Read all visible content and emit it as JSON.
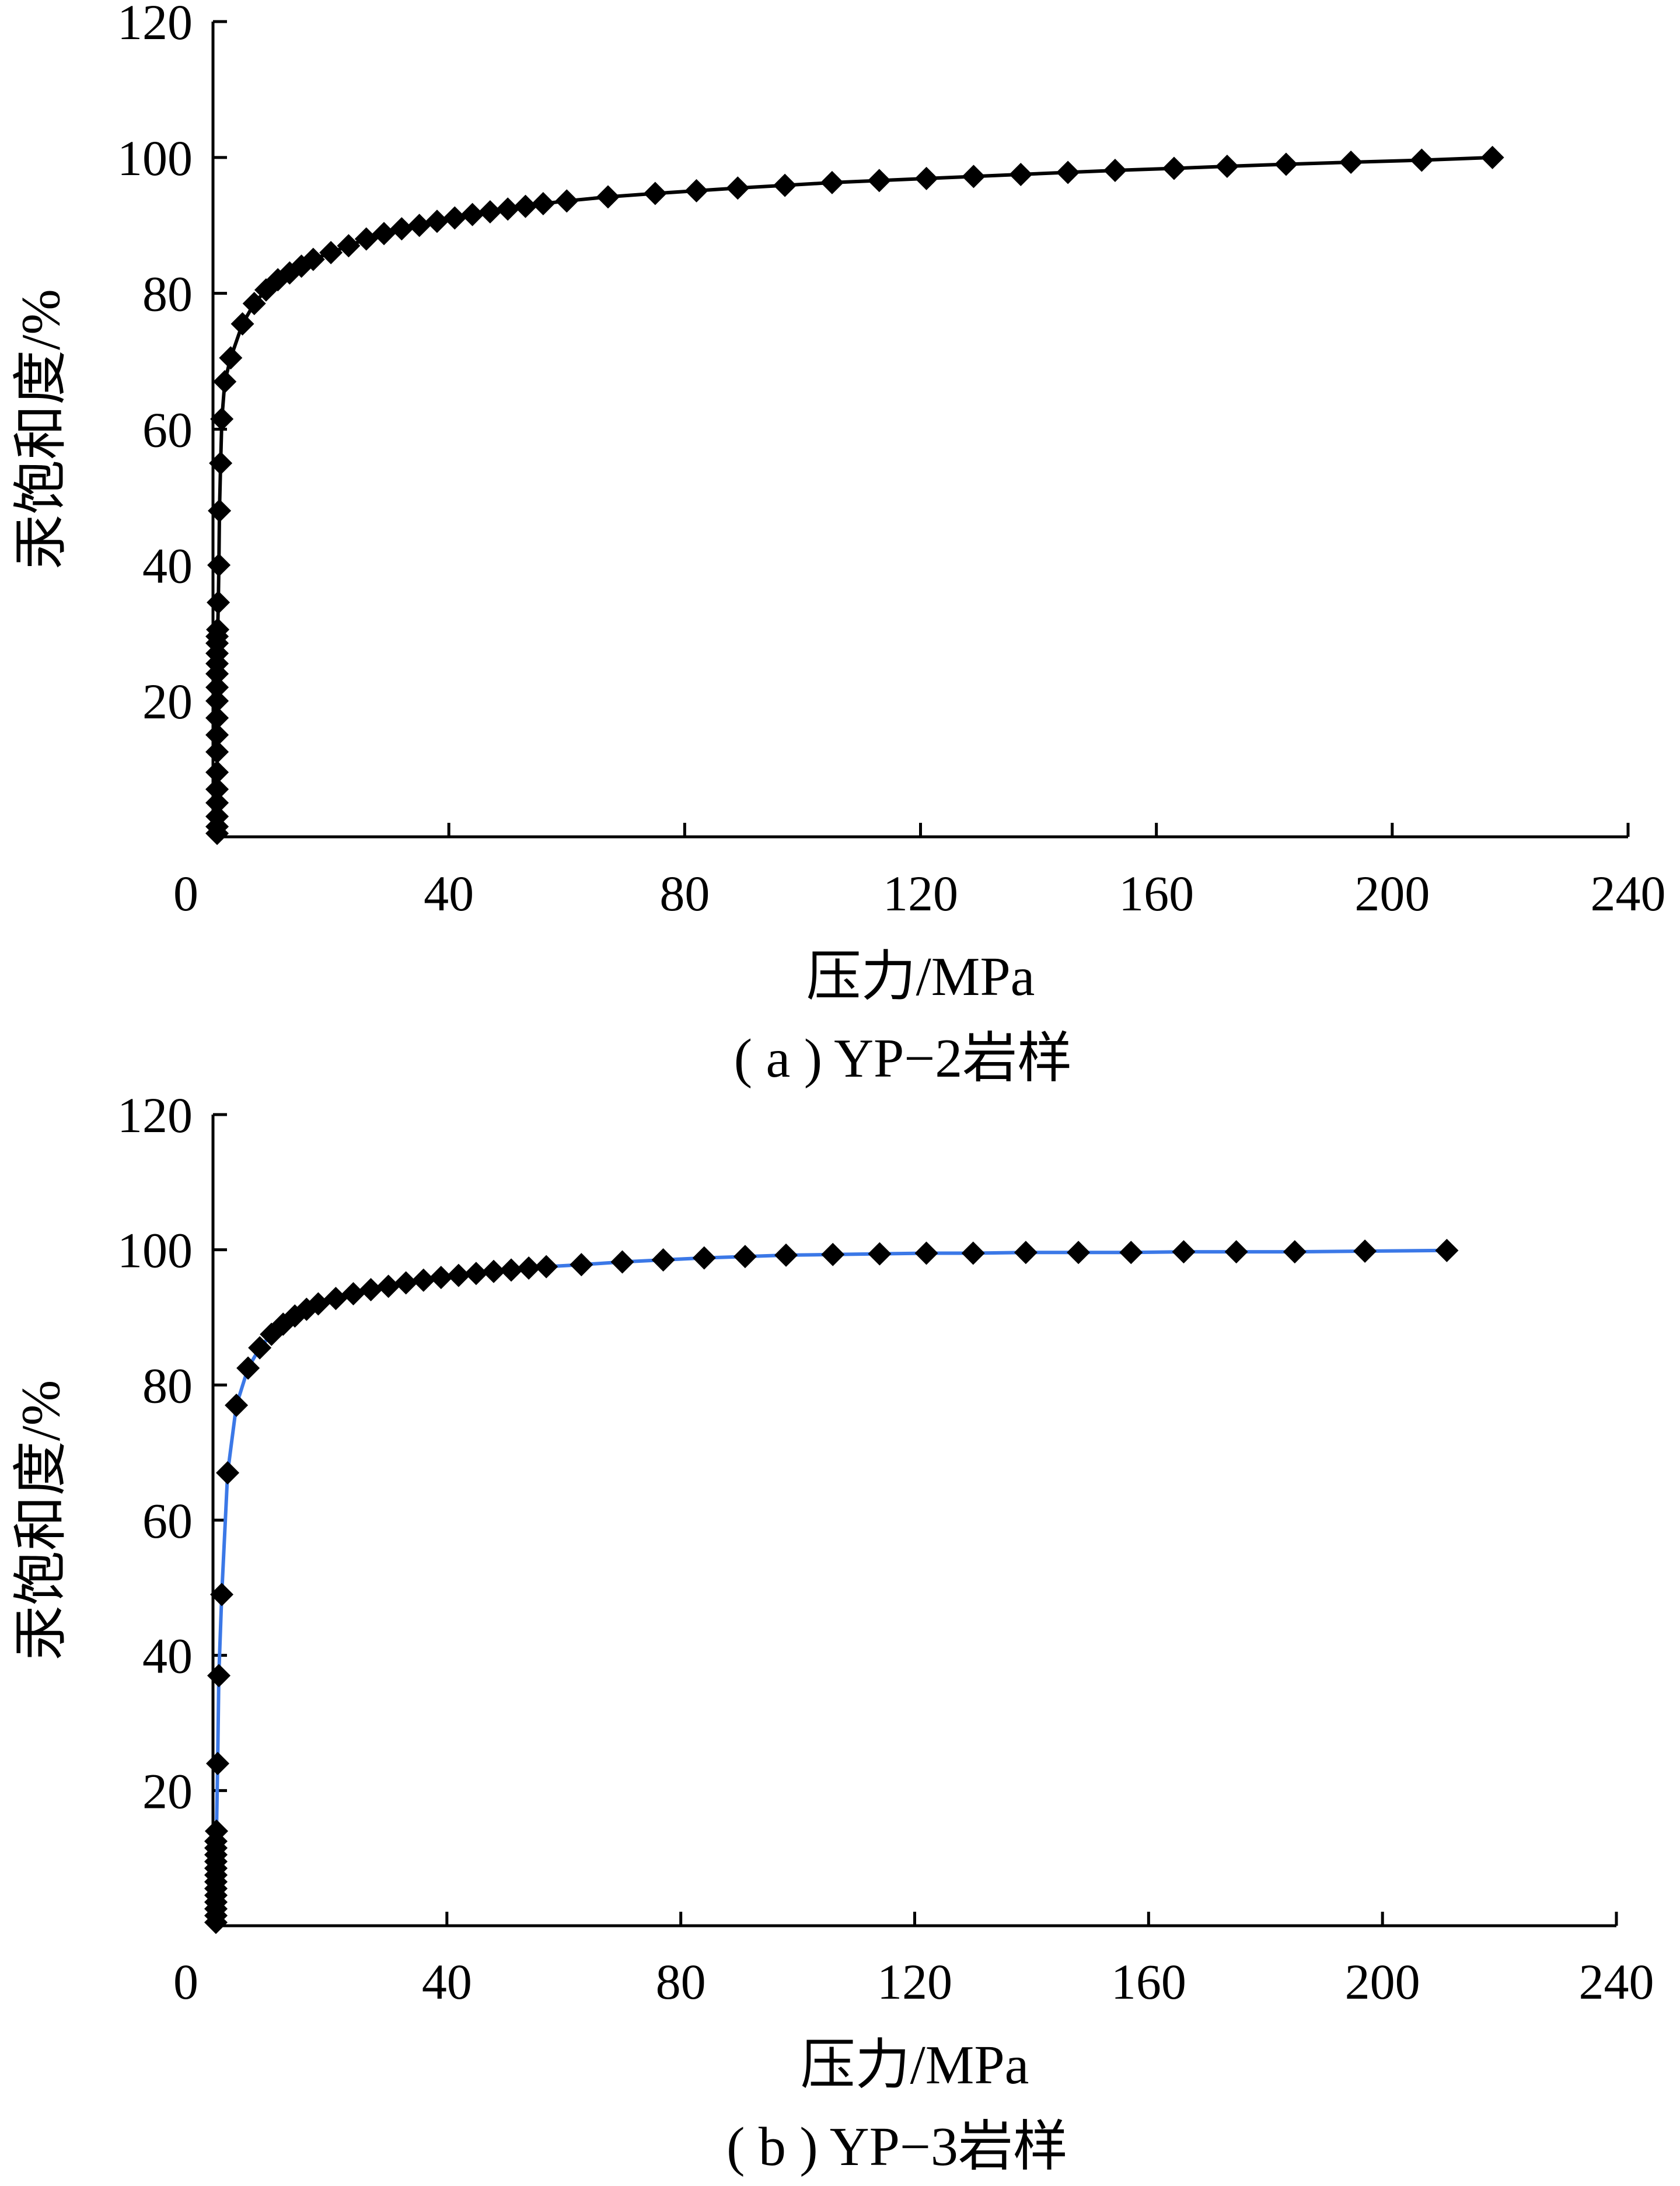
{
  "colors": {
    "panel_a_line": "#000000",
    "panel_b_line": "#3b78e7",
    "marker": "#000000",
    "axis": "#000000"
  },
  "chart_data": [
    {
      "type": "line",
      "caption": "( a ) YP−2岩样",
      "xlabel": "压力/MPa",
      "ylabel": "汞饱和度/%",
      "xlim": [
        0,
        240
      ],
      "ylim": [
        0,
        120
      ],
      "xticks": [
        "0",
        "40",
        "80",
        "120",
        "160",
        "200",
        "240"
      ],
      "yticks": [
        "20",
        "40",
        "60",
        "80",
        "100",
        "120"
      ],
      "grid": false,
      "series": [
        {
          "marker": "diamond",
          "x": [
            0.7,
            0.7,
            0.7,
            0.7,
            0.7,
            0.7,
            0.7,
            0.7,
            0.7,
            0.7,
            0.7,
            0.7,
            0.7,
            0.7,
            0.7,
            0.7,
            0.8,
            0.9,
            1.0,
            1.1,
            1.3,
            1.5,
            2.0,
            3.0,
            5.0,
            7.0,
            9.0,
            11.0,
            13.0,
            15.0,
            17.0,
            20.0,
            23.0,
            26.0,
            29.0,
            32.0,
            35.0,
            38.0,
            41.0,
            44.0,
            47.0,
            50.0,
            53.0,
            56.0,
            60.0,
            67.0,
            75.0,
            82.0,
            89.0,
            97.0,
            105.0,
            113.0,
            121.0,
            129.0,
            137.0,
            145.0,
            153.0,
            163.0,
            172.0,
            182.0,
            193.0,
            205.0,
            217.0
          ],
          "y": [
            0.5,
            1.5,
            3.0,
            5.0,
            7.0,
            9.5,
            12.5,
            15.0,
            17.5,
            20.0,
            22.0,
            24.0,
            25.5,
            27.0,
            28.5,
            29.5,
            30.5,
            34.5,
            40.0,
            48.0,
            55.0,
            61.5,
            67.0,
            70.5,
            75.5,
            78.5,
            80.5,
            82.0,
            83.0,
            84.0,
            85.0,
            86.0,
            87.0,
            88.0,
            88.8,
            89.5,
            90.0,
            90.6,
            91.1,
            91.6,
            92.0,
            92.4,
            92.8,
            93.2,
            93.6,
            94.2,
            94.7,
            95.1,
            95.5,
            95.9,
            96.3,
            96.6,
            96.9,
            97.2,
            97.5,
            97.8,
            98.1,
            98.4,
            98.7,
            99.0,
            99.3,
            99.6,
            100.0
          ]
        }
      ]
    },
    {
      "type": "line",
      "caption": "( b ) YP−3岩样",
      "xlabel": "压力/MPa",
      "ylabel": "汞饱和度/%",
      "xlim": [
        0,
        240
      ],
      "ylim": [
        0,
        120
      ],
      "xticks": [
        "0",
        "40",
        "80",
        "120",
        "160",
        "200",
        "240"
      ],
      "yticks": [
        "20",
        "40",
        "60",
        "80",
        "100",
        "120"
      ],
      "grid": false,
      "series": [
        {
          "marker": "diamond",
          "x": [
            0.5,
            0.5,
            0.5,
            0.5,
            0.5,
            0.5,
            0.5,
            0.5,
            0.5,
            0.5,
            0.5,
            0.5,
            0.5,
            0.6,
            0.8,
            1.0,
            1.5,
            2.5,
            4.0,
            6.0,
            8.0,
            10.0,
            12.0,
            14.0,
            16.0,
            18.0,
            21.0,
            24.0,
            27.0,
            30.0,
            33.0,
            36.0,
            39.0,
            42.0,
            45.0,
            48.0,
            51.0,
            54.0,
            57.0,
            63.0,
            70.0,
            77.0,
            84.0,
            91.0,
            98.0,
            106.0,
            114.0,
            122.0,
            130.0,
            139.0,
            148.0,
            157.0,
            166.0,
            175.0,
            185.0,
            197.0,
            211.0
          ],
          "y": [
            0.5,
            1.5,
            2.5,
            3.5,
            4.5,
            5.5,
            6.5,
            7.5,
            8.5,
            9.5,
            10.5,
            11.5,
            12.5,
            14.0,
            24.0,
            37.0,
            49.0,
            67.0,
            77.0,
            82.5,
            85.5,
            87.5,
            89.0,
            90.2,
            91.2,
            92.0,
            92.8,
            93.5,
            94.1,
            94.6,
            95.1,
            95.5,
            95.9,
            96.2,
            96.5,
            96.8,
            97.0,
            97.3,
            97.5,
            97.8,
            98.2,
            98.5,
            98.8,
            99.0,
            99.2,
            99.3,
            99.4,
            99.5,
            99.5,
            99.6,
            99.6,
            99.6,
            99.7,
            99.7,
            99.7,
            99.8,
            99.9
          ]
        }
      ]
    }
  ]
}
